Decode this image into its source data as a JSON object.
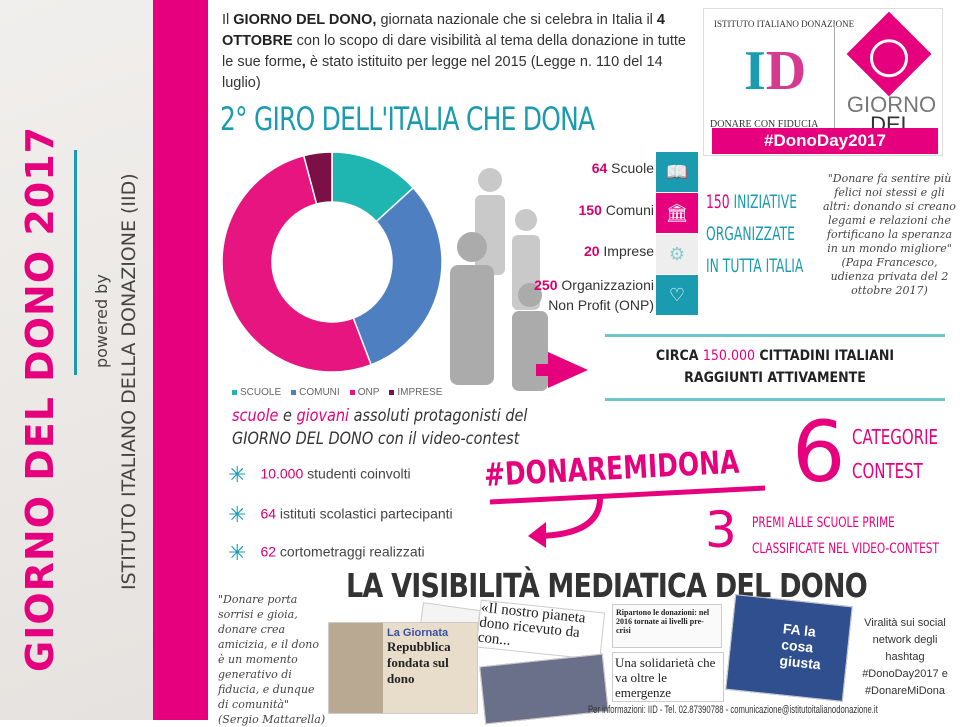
{
  "sidebar": {
    "title": "GIORNO DEL DONO 2017",
    "powered_by": "powered by",
    "organization": "ISTITUTO ITALIANO DELLA DONAZIONE (IID)"
  },
  "intro": {
    "p1": "Il ",
    "b1": "GIORNO DEL DONO,",
    "p2": " giornata nazionale che si celebra in Italia il ",
    "b2": "4 OTTOBRE",
    "p3": " con lo scopo di dare visibilità al tema della donazione in tutte le sue forme",
    "b3": ",",
    "p4": " è stato istituito per legge nel 2015 (Legge n. 110 del 14 luglio)"
  },
  "headline": "2° GIRO DELL'ITALIA CHE DONA",
  "logo": {
    "arc": "ISTITUTO ITALIANO DONAZIONE",
    "initials_1": "I",
    "initials_2": "D",
    "tagline": "DONARE CON FIDUCIA",
    "giorno": "GIORNO",
    "del_dono": "DEL DONO",
    "hashtag": "#DonoDay2017"
  },
  "chart_data": {
    "type": "pie",
    "donut": true,
    "categories": [
      "SCUOLE",
      "COMUNI",
      "ONP",
      "IMPRESE"
    ],
    "values": [
      64,
      150,
      250,
      20
    ],
    "colors": [
      "#1fb5b0",
      "#4e7fc1",
      "#e6157f",
      "#7a1046"
    ],
    "legend_position": "bottom"
  },
  "stats": [
    {
      "num": "64",
      "label": " Scuole"
    },
    {
      "num": "150",
      "label": " Comuni"
    },
    {
      "num": "20",
      "label": " Imprese"
    },
    {
      "num": "250",
      "label": " Organizzazioni",
      "label2": "Non Profit (ONP)"
    }
  ],
  "category_icons": [
    {
      "icon": "book-icon",
      "color": "#1a9bb0"
    },
    {
      "icon": "building-icon",
      "color": "#e6007e"
    },
    {
      "icon": "gears-icon",
      "color": "#eeeeee"
    },
    {
      "icon": "heart-icon",
      "color": "#1a9bb0"
    }
  ],
  "initiatives": {
    "num": "150",
    "l1": " INIZIATIVE",
    "l2": "ORGANIZZATE",
    "l3": "IN TUTTA ITALIA"
  },
  "papa_quote": {
    "text": "\"Donare fa sentire più felici noi stessi e gli altri: donando si creano legami e relazioni che fortificano la speranza in un mondo migliore\"",
    "source": "(Papa Francesco, udienza privata del 2 ottobre 2017)"
  },
  "citizens": {
    "pre": "CIRCA ",
    "num": "150.000",
    "post": " CITTADINI ITALIANI",
    "line2": "RAGGIUNTI ATTIVAMENTE"
  },
  "schools": {
    "w1": "scuole",
    "w2": " e ",
    "w3": "giovani",
    "w4": " assoluti protagonisti del",
    "line2": "GIORNO DEL DONO con il video-contest"
  },
  "bullets": [
    {
      "num": "10.000",
      "text": " studenti coinvolti"
    },
    {
      "num": "64",
      "text": " istituti scolastici partecipanti"
    },
    {
      "num": "62",
      "text": " cortometraggi realizzati"
    }
  ],
  "contest": {
    "hashtag": "#DONAREMIDONA",
    "six": "6",
    "cat1": "CATEGORIE",
    "cat2": "CONTEST",
    "three": "3",
    "premi1": "PREMI ALLE SCUOLE PRIME",
    "premi2": "CLASSIFICATE NEL VIDEO-CONTEST"
  },
  "media": {
    "title": "LA VISIBILITÀ MEDIATICA DEL DONO",
    "clip1_kicker": "La Giornata",
    "clip1_title": "Repubblica fondata sul dono",
    "clip2_title": "«Il nostro pianeta dono ricevuto da con...",
    "clip3_title": "Ripartono le donazioni: nel 2016 tornate ai livelli pre-crisi",
    "clip4_title": "Una solidarietà che va oltre le emergenze",
    "clip5_title": "FA la cosa giusta"
  },
  "mattarella_quote": {
    "text": "\"Donare porta sorrisi e gioia, donare crea amicizia, e il dono è un momento generativo di fiducia, e dunque di comunità\"",
    "source": "(Sergio Mattarella)"
  },
  "virality": "Viralità sui social network degli hashtag #DonoDay2017 e #DonareMiDona",
  "footer": "Per informazioni: IID - Tel. 02.87390788 - comunicazione@istitutoitalianodonazione.it"
}
